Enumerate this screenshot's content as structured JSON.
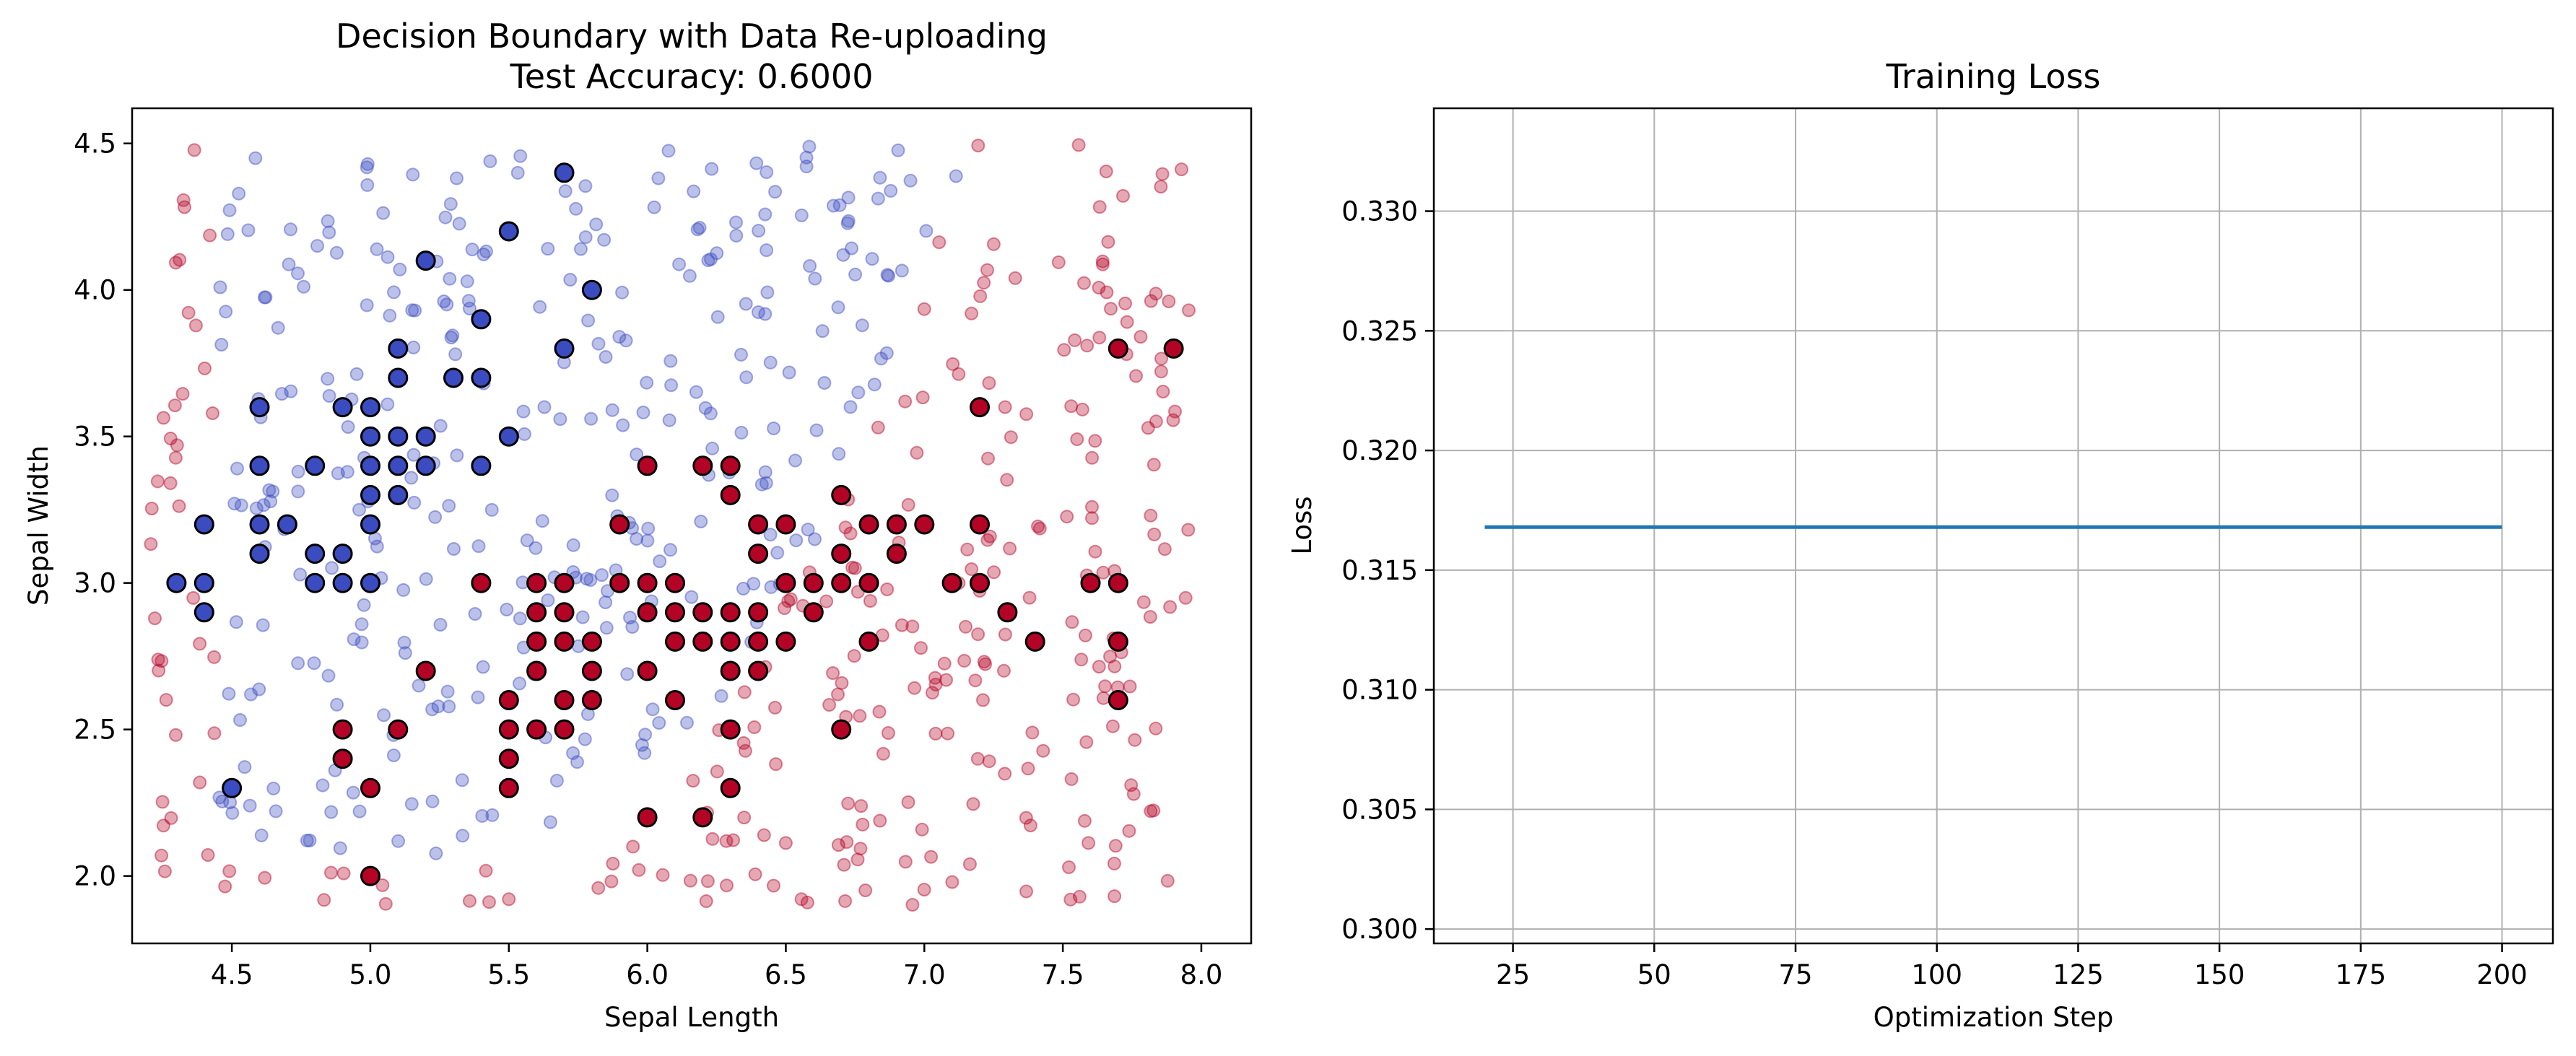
{
  "chart_data": [
    {
      "type": "scatter",
      "title": "Decision Boundary with Data Re-uploading",
      "subtitle": "Test Accuracy: 0.6000",
      "xlabel": "Sepal Length",
      "ylabel": "Sepal Width",
      "xlim": [
        4.14,
        8.18
      ],
      "ylim": [
        1.77,
        4.62
      ],
      "xticks": [
        "4.5",
        "5.0",
        "5.5",
        "6.0",
        "6.5",
        "7.0",
        "7.5",
        "8.0"
      ],
      "xtick_values": [
        4.5,
        5.0,
        5.5,
        6.0,
        6.5,
        7.0,
        7.5,
        8.0
      ],
      "yticks": [
        "2.0",
        "2.5",
        "3.0",
        "3.5",
        "4.0",
        "4.5"
      ],
      "ytick_values": [
        2.0,
        2.5,
        3.0,
        3.5,
        4.0,
        4.5
      ],
      "grid": false,
      "colors": {
        "class_0": "#3b4cc0",
        "class_1": "#b40426",
        "edge": "#000000"
      },
      "data_points": {
        "class_0": [
          [
            4.3,
            3.0
          ],
          [
            4.4,
            3.2
          ],
          [
            4.4,
            3.0
          ],
          [
            4.4,
            2.9
          ],
          [
            4.5,
            2.3
          ],
          [
            4.6,
            3.6
          ],
          [
            4.6,
            3.4
          ],
          [
            4.6,
            3.2
          ],
          [
            4.6,
            3.1
          ],
          [
            4.7,
            3.2
          ],
          [
            4.8,
            3.4
          ],
          [
            4.8,
            3.1
          ],
          [
            4.8,
            3.0
          ],
          [
            4.9,
            3.6
          ],
          [
            4.9,
            3.1
          ],
          [
            4.9,
            3.0
          ],
          [
            5.0,
            3.6
          ],
          [
            5.0,
            3.5
          ],
          [
            5.0,
            3.4
          ],
          [
            5.0,
            3.3
          ],
          [
            5.0,
            3.2
          ],
          [
            5.0,
            3.0
          ],
          [
            5.1,
            3.8
          ],
          [
            5.1,
            3.7
          ],
          [
            5.1,
            3.5
          ],
          [
            5.1,
            3.4
          ],
          [
            5.1,
            3.3
          ],
          [
            5.2,
            4.1
          ],
          [
            5.2,
            3.5
          ],
          [
            5.2,
            3.4
          ],
          [
            5.3,
            3.7
          ],
          [
            5.4,
            3.9
          ],
          [
            5.4,
            3.7
          ],
          [
            5.4,
            3.4
          ],
          [
            5.5,
            4.2
          ],
          [
            5.5,
            3.5
          ],
          [
            5.7,
            4.4
          ],
          [
            5.7,
            3.8
          ],
          [
            5.8,
            4.0
          ]
        ],
        "class_1": [
          [
            4.9,
            2.5
          ],
          [
            4.9,
            2.4
          ],
          [
            5.0,
            2.3
          ],
          [
            5.0,
            2.0
          ],
          [
            5.1,
            2.5
          ],
          [
            5.2,
            2.7
          ],
          [
            5.4,
            3.0
          ],
          [
            5.5,
            2.6
          ],
          [
            5.5,
            2.5
          ],
          [
            5.5,
            2.4
          ],
          [
            5.5,
            2.3
          ],
          [
            5.6,
            3.0
          ],
          [
            5.6,
            2.9
          ],
          [
            5.6,
            2.8
          ],
          [
            5.6,
            2.7
          ],
          [
            5.6,
            2.5
          ],
          [
            5.7,
            3.0
          ],
          [
            5.7,
            2.9
          ],
          [
            5.7,
            2.8
          ],
          [
            5.7,
            2.6
          ],
          [
            5.7,
            2.5
          ],
          [
            5.8,
            2.8
          ],
          [
            5.8,
            2.7
          ],
          [
            5.8,
            2.6
          ],
          [
            5.9,
            3.2
          ],
          [
            5.9,
            3.0
          ],
          [
            6.0,
            3.4
          ],
          [
            6.0,
            3.0
          ],
          [
            6.0,
            2.9
          ],
          [
            6.0,
            2.7
          ],
          [
            6.0,
            2.2
          ],
          [
            6.1,
            3.0
          ],
          [
            6.1,
            2.9
          ],
          [
            6.1,
            2.8
          ],
          [
            6.1,
            2.6
          ],
          [
            6.2,
            3.4
          ],
          [
            6.2,
            2.9
          ],
          [
            6.2,
            2.8
          ],
          [
            6.2,
            2.2
          ],
          [
            6.3,
            3.4
          ],
          [
            6.3,
            3.3
          ],
          [
            6.3,
            2.9
          ],
          [
            6.3,
            2.8
          ],
          [
            6.3,
            2.7
          ],
          [
            6.3,
            2.5
          ],
          [
            6.3,
            2.3
          ],
          [
            6.4,
            3.2
          ],
          [
            6.4,
            3.1
          ],
          [
            6.4,
            2.9
          ],
          [
            6.4,
            2.8
          ],
          [
            6.4,
            2.7
          ],
          [
            6.5,
            3.2
          ],
          [
            6.5,
            3.0
          ],
          [
            6.5,
            2.8
          ],
          [
            6.6,
            3.0
          ],
          [
            6.6,
            2.9
          ],
          [
            6.7,
            3.3
          ],
          [
            6.7,
            3.1
          ],
          [
            6.7,
            3.0
          ],
          [
            6.7,
            2.5
          ],
          [
            6.8,
            3.2
          ],
          [
            6.8,
            3.0
          ],
          [
            6.8,
            2.8
          ],
          [
            6.9,
            3.2
          ],
          [
            6.9,
            3.1
          ],
          [
            7.0,
            3.2
          ],
          [
            7.1,
            3.0
          ],
          [
            7.2,
            3.6
          ],
          [
            7.2,
            3.2
          ],
          [
            7.2,
            3.0
          ],
          [
            7.3,
            2.9
          ],
          [
            7.4,
            2.8
          ],
          [
            7.6,
            3.0
          ],
          [
            7.7,
            3.8
          ],
          [
            7.7,
            3.0
          ],
          [
            7.7,
            2.8
          ],
          [
            7.7,
            2.6
          ],
          [
            7.9,
            3.8
          ]
        ]
      }
    },
    {
      "type": "line",
      "title": "Training Loss",
      "xlabel": "Optimization Step",
      "ylabel": "Loss",
      "xlim": [
        11,
        209
      ],
      "ylim": [
        0.2994,
        0.3343
      ],
      "xticks": [
        "25",
        "50",
        "75",
        "100",
        "125",
        "150",
        "175",
        "200"
      ],
      "xtick_values": [
        25,
        50,
        75,
        100,
        125,
        150,
        175,
        200
      ],
      "yticks": [
        "0.300",
        "0.305",
        "0.310",
        "0.315",
        "0.320",
        "0.325",
        "0.330"
      ],
      "ytick_values": [
        0.3,
        0.305,
        0.31,
        0.315,
        0.32,
        0.325,
        0.33
      ],
      "grid": true,
      "series": [
        {
          "color": "#1f77b4",
          "x": [
            20,
            40,
            60,
            80,
            100,
            120,
            140,
            160,
            180,
            200
          ],
          "values": [
            0.3168,
            0.3168,
            0.3168,
            0.3168,
            0.3168,
            0.3168,
            0.3168,
            0.3168,
            0.3168,
            0.3168
          ]
        }
      ]
    }
  ]
}
